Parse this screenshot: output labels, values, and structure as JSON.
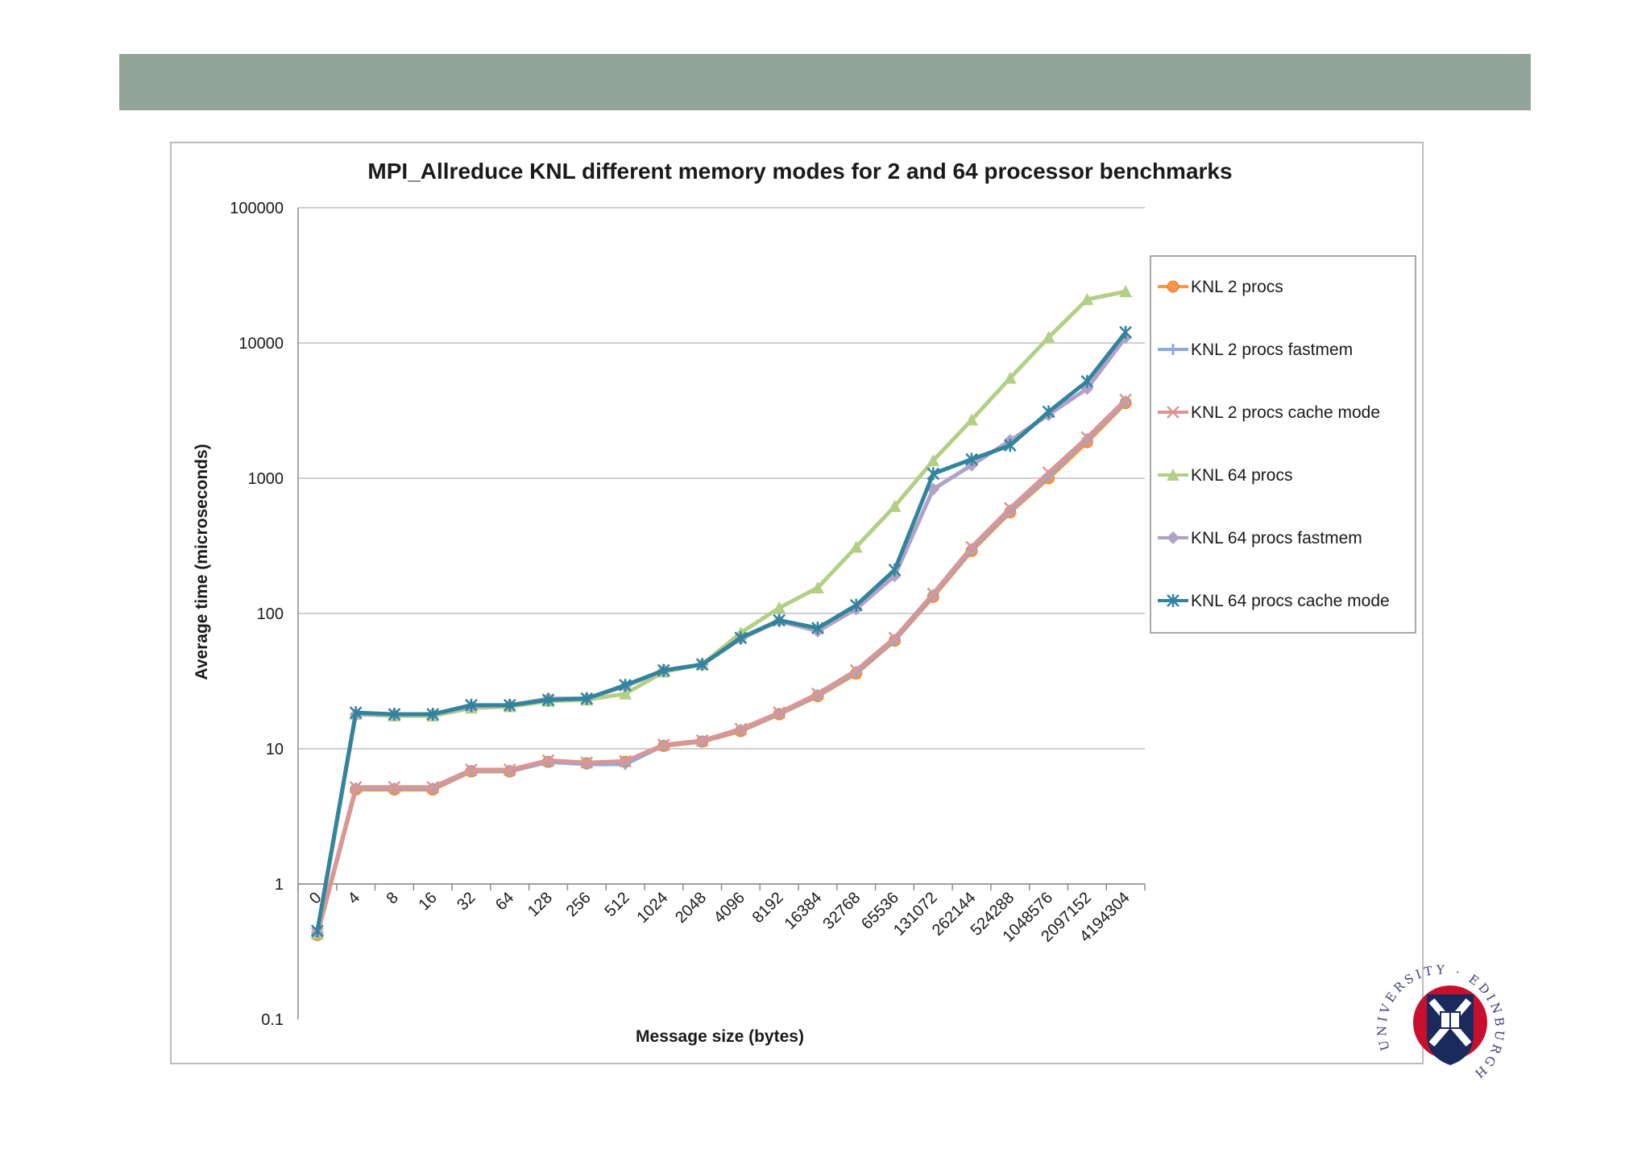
{
  "chart_data": {
    "type": "line",
    "title": "MPI_Allreduce KNL different memory modes for 2 and 64 processor benchmarks",
    "xlabel": "Message size (bytes)",
    "ylabel": "Average time (microseconds)",
    "y_scale": "log",
    "ylim": [
      0.1,
      100000
    ],
    "y_ticks": [
      "0.1",
      "1",
      "10",
      "100",
      "1000",
      "10000",
      "100000"
    ],
    "categories": [
      "0",
      "4",
      "8",
      "16",
      "32",
      "64",
      "128",
      "256",
      "512",
      "1024",
      "2048",
      "4096",
      "8192",
      "16384",
      "32768",
      "65536",
      "131072",
      "262144",
      "524288",
      "1048576",
      "2097152",
      "4194304"
    ],
    "grid": "horizontal",
    "legend_position": "right",
    "series": [
      {
        "name": "KNL 2 procs",
        "color": "#f79646",
        "marker": "circle",
        "values": [
          0.42,
          5.0,
          5.0,
          5.0,
          6.8,
          6.8,
          8.0,
          7.8,
          8.0,
          10.5,
          11.3,
          13.5,
          18.0,
          24.5,
          36.0,
          63.0,
          133.0,
          290.0,
          560.0,
          1000.0,
          1850.0,
          3600.0
        ]
      },
      {
        "name": "KNL 2 procs fastmem",
        "color": "#8ea9db",
        "marker": "plus",
        "values": [
          0.43,
          5.1,
          5.1,
          5.1,
          6.9,
          6.9,
          8.0,
          7.7,
          7.7,
          10.6,
          11.4,
          13.8,
          18.2,
          25.0,
          37.0,
          64.0,
          137.0,
          300.0,
          580.0,
          1050.0,
          1950.0,
          3700.0
        ]
      },
      {
        "name": "KNL 2 procs cache mode",
        "color": "#d99694",
        "marker": "x",
        "values": [
          0.43,
          5.2,
          5.2,
          5.2,
          7.0,
          7.0,
          8.2,
          7.9,
          8.1,
          10.7,
          11.5,
          14.0,
          18.5,
          25.5,
          38.0,
          66.0,
          140.0,
          310.0,
          600.0,
          1100.0,
          2000.0,
          3800.0
        ]
      },
      {
        "name": "KNL 64 procs",
        "color": "#b3cf85",
        "marker": "triangle",
        "values": [
          0.43,
          18.0,
          17.5,
          17.5,
          20.0,
          20.5,
          22.5,
          23.0,
          25.5,
          37.0,
          42.0,
          72.0,
          110.0,
          155.0,
          310.0,
          620.0,
          1350.0,
          2700.0,
          5500.0,
          11000.0,
          21000.0,
          24000.0
        ]
      },
      {
        "name": "KNL 64 procs fastmem",
        "color": "#b2a1c7",
        "marker": "diamond",
        "values": [
          0.44,
          18.0,
          18.0,
          18.0,
          20.5,
          21.0,
          23.5,
          23.5,
          29.0,
          38.0,
          42.0,
          65.0,
          88.0,
          74.0,
          108.0,
          190.0,
          830.0,
          1250.0,
          1900.0,
          2950.0,
          4600.0,
          11000.0
        ]
      },
      {
        "name": "KNL 64 procs cache mode",
        "color": "#31849b",
        "marker": "asterisk",
        "values": [
          0.45,
          18.5,
          18.0,
          18.0,
          21.0,
          21.0,
          23.0,
          23.5,
          29.5,
          38.0,
          42.0,
          66.0,
          89.0,
          78.0,
          115.0,
          210.0,
          1080.0,
          1380.0,
          1750.0,
          3100.0,
          5200.0,
          12000.0
        ]
      }
    ]
  }
}
